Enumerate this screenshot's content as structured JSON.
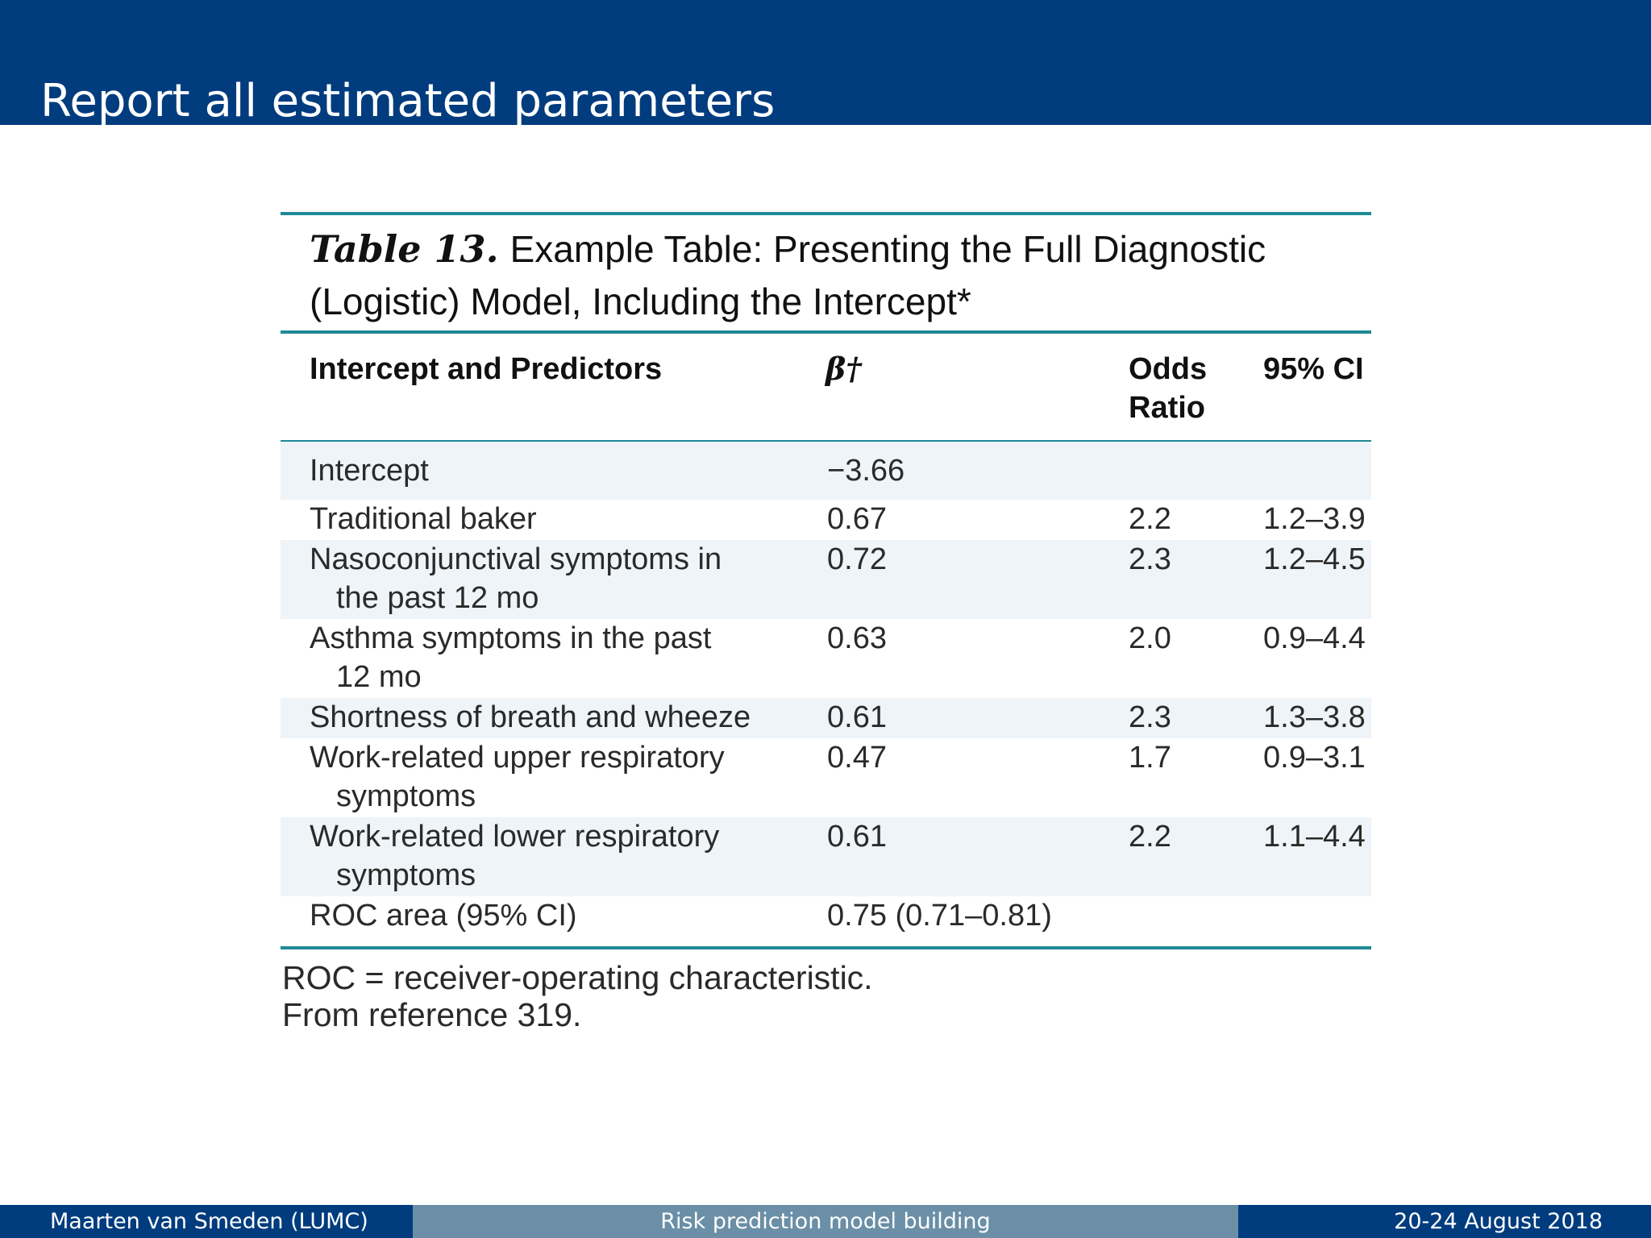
{
  "slide": {
    "title": "Report all estimated parameters"
  },
  "table": {
    "caption_label": "Table 13.",
    "caption_text": "Example Table: Presenting the Full Diagnostic (Logistic) Model, Including the Intercept*",
    "headers": {
      "predictors": "Intercept and Predictors",
      "beta": "β†",
      "odds_ratio": "Odds Ratio",
      "ci": "95% CI"
    },
    "rows": [
      {
        "predictor": "Intercept",
        "predictor_cont": "",
        "beta": "−3.66",
        "odds_ratio": "",
        "ci": ""
      },
      {
        "predictor": "Traditional baker",
        "predictor_cont": "",
        "beta": "0.67",
        "odds_ratio": "2.2",
        "ci": "1.2–3.9"
      },
      {
        "predictor": "Nasoconjunctival symptoms in",
        "predictor_cont": "the past 12 mo",
        "beta": "0.72",
        "odds_ratio": "2.3",
        "ci": "1.2–4.5"
      },
      {
        "predictor": "Asthma symptoms in the past",
        "predictor_cont": "12 mo",
        "beta": "0.63",
        "odds_ratio": "2.0",
        "ci": "0.9–4.4"
      },
      {
        "predictor": "Shortness of breath and wheeze",
        "predictor_cont": "",
        "beta": "0.61",
        "odds_ratio": "2.3",
        "ci": "1.3–3.8"
      },
      {
        "predictor": "Work-related upper respiratory",
        "predictor_cont": "symptoms",
        "beta": "0.47",
        "odds_ratio": "1.7",
        "ci": "0.9–3.1"
      },
      {
        "predictor": "Work-related lower respiratory",
        "predictor_cont": "symptoms",
        "beta": "0.61",
        "odds_ratio": "2.2",
        "ci": "1.1–4.4"
      },
      {
        "predictor": "ROC area (95% CI)",
        "predictor_cont": "",
        "beta": "0.75 (0.71–0.81)",
        "odds_ratio": "",
        "ci": ""
      }
    ],
    "footnotes": [
      "ROC = receiver-operating characteristic.",
      "From reference 319."
    ]
  },
  "footer": {
    "author": "Maarten van Smeden  (LUMC)",
    "talk_title": "Risk prediction model building",
    "date": "20-24 August 2018"
  },
  "colors": {
    "header_bg": "#003c7e",
    "footer_mid_bg": "#6a8fa6",
    "table_rule": "#1e8a96",
    "row_shade": "#eef4f8"
  }
}
